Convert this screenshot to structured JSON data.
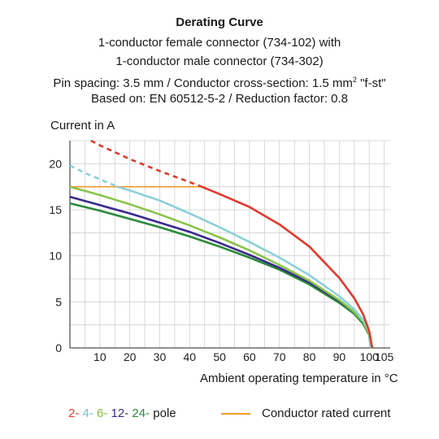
{
  "header": {
    "title": "Derating Curve",
    "line1": "1-conductor female connector (734-102) with",
    "line2": "1-conductor male connector (734-302)",
    "line3_pre": "Pin spacing: 3.5 mm / Conductor cross-section: 1.5 mm",
    "line3_sup": "2",
    "line3_post": " \"f-st\"",
    "line4": "Based on: EN 60512-5-2 / Reduction factor: 0.8"
  },
  "legend": {
    "p2": "2-",
    "p4": "4-",
    "p6": "6-",
    "p12": "12-",
    "p24": "24-",
    "pole": "pole",
    "rated": "Conductor rated current"
  },
  "chart_data": {
    "type": "line",
    "ylabel": "Current in A",
    "xlabel": "Ambient operating temperature in °C",
    "xlim": [
      0,
      107
    ],
    "ylim": [
      0,
      22.5
    ],
    "x_ticks": [
      10,
      20,
      30,
      40,
      50,
      60,
      70,
      80,
      90,
      100,
      105
    ],
    "y_ticks": [
      0,
      5,
      10,
      15,
      20
    ],
    "grid": true,
    "series": [
      {
        "name": "2-",
        "color": "#e03a2a",
        "dashed_x": [
          7,
          10,
          20,
          30,
          40,
          44
        ],
        "dashed_y": [
          22.5,
          22.0,
          20.5,
          19.2,
          18.0,
          17.5
        ],
        "solid_x": [
          44,
          50,
          60,
          70,
          80,
          90,
          95,
          98,
          100,
          101
        ],
        "solid_y": [
          17.5,
          16.7,
          15.3,
          13.4,
          11.0,
          7.6,
          5.4,
          3.6,
          1.8,
          0
        ]
      },
      {
        "name": "4-",
        "color": "#8ad0d8",
        "dashed_x": [
          0,
          5,
          10,
          16
        ],
        "dashed_y": [
          19.8,
          19.0,
          18.3,
          17.5
        ],
        "solid_x": [
          16,
          20,
          30,
          40,
          50,
          60,
          70,
          80,
          90,
          95,
          98,
          100,
          100.5
        ],
        "solid_y": [
          17.5,
          17.1,
          16.0,
          14.6,
          13.1,
          11.5,
          9.8,
          7.9,
          5.6,
          4.2,
          3.0,
          1.8,
          0
        ]
      },
      {
        "name": "6-",
        "color": "#8ac44a",
        "solid_x": [
          0,
          10,
          20,
          30,
          40,
          50,
          60,
          70,
          80,
          90,
          95,
          98,
          100,
          100.5
        ],
        "solid_y": [
          17.5,
          16.6,
          15.6,
          14.5,
          13.3,
          12.0,
          10.6,
          9.0,
          7.3,
          5.2,
          3.9,
          2.8,
          1.5,
          0
        ]
      },
      {
        "name": "12-",
        "color": "#3a2a8a",
        "solid_x": [
          0,
          10,
          20,
          30,
          40,
          50,
          60,
          70,
          80,
          90,
          95,
          98,
          100,
          100.5
        ],
        "solid_y": [
          16.4,
          15.5,
          14.6,
          13.6,
          12.6,
          11.4,
          10.1,
          8.7,
          7.1,
          5.1,
          3.9,
          2.8,
          1.5,
          0
        ]
      },
      {
        "name": "24-",
        "color": "#2a8a3a",
        "solid_x": [
          0,
          10,
          20,
          30,
          40,
          50,
          60,
          70,
          80,
          90,
          95,
          98,
          100,
          100.5
        ],
        "solid_y": [
          15.7,
          14.9,
          14.0,
          13.1,
          12.1,
          11.0,
          9.8,
          8.5,
          6.9,
          4.9,
          3.7,
          2.6,
          1.4,
          0
        ]
      },
      {
        "name": "Conductor rated current",
        "color": "#f39a2c",
        "solid_x": [
          0,
          45
        ],
        "solid_y": [
          17.5,
          17.5
        ]
      }
    ]
  }
}
